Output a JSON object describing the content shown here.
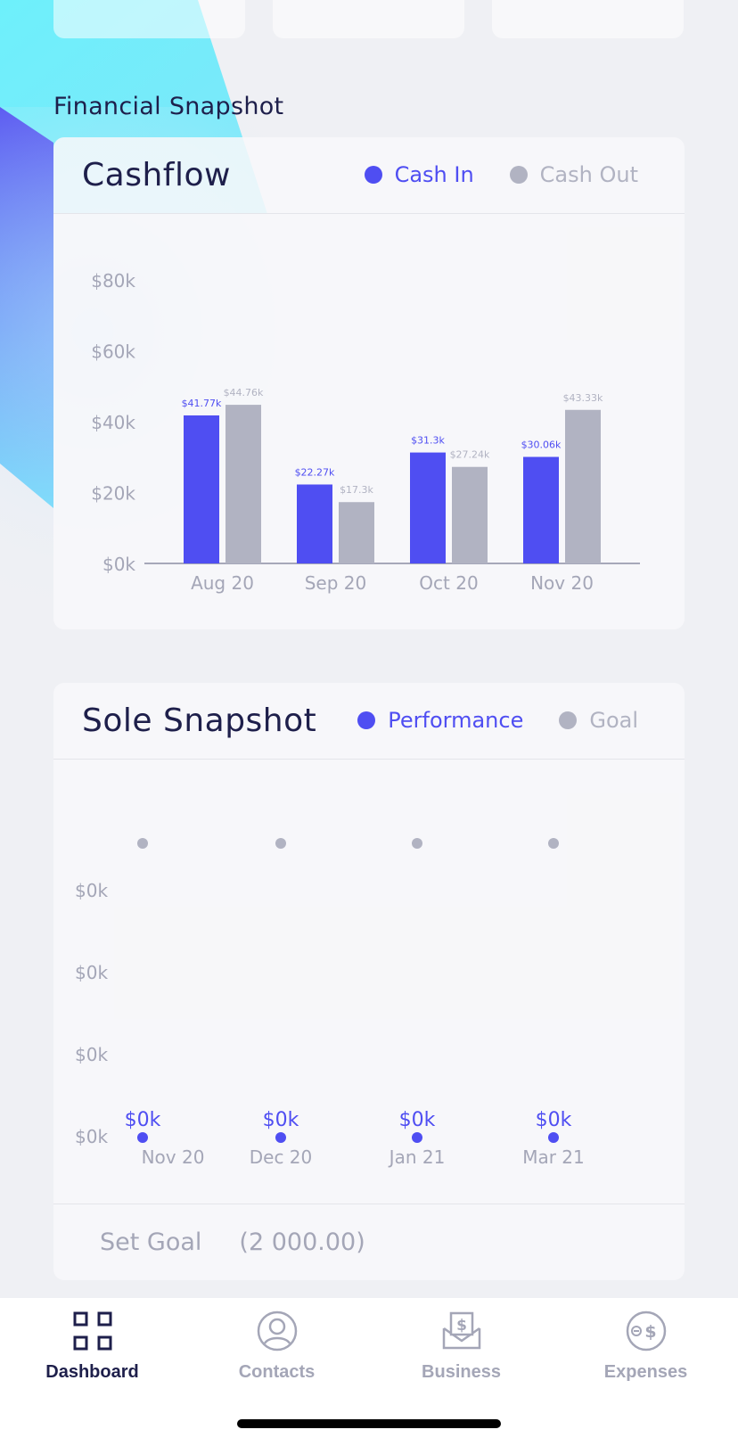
{
  "colors": {
    "primary": "#4f4ef2",
    "secondary": "#b1b3c2",
    "title": "#1e1f4b",
    "muted": "#a4a6b7",
    "background": "#eff0f4"
  },
  "section_title": "Financial Snapshot",
  "cashflow": {
    "title": "Cashflow",
    "legend": [
      {
        "label": "Cash In",
        "color": "#4f4ef2"
      },
      {
        "label": "Cash Out",
        "color": "#b1b3c2"
      }
    ]
  },
  "sole": {
    "title": "Sole Snapshot",
    "legend": [
      {
        "label": "Performance",
        "color": "#4f4ef2"
      },
      {
        "label": "Goal",
        "color": "#b1b3c2"
      }
    ],
    "goal_label": "Set Goal",
    "goal_value": "(2 000.00)"
  },
  "chart_data": [
    {
      "type": "bar",
      "title": "Cashflow",
      "categories": [
        "Aug 20",
        "Sep 20",
        "Oct 20",
        "Nov 20"
      ],
      "series": [
        {
          "name": "Cash In",
          "color": "#4f4ef2",
          "values": [
            41.77,
            22.27,
            31.3,
            30.06
          ],
          "labels": [
            "$41.77k",
            "$22.27k",
            "$31.3k",
            "$30.06k"
          ]
        },
        {
          "name": "Cash Out",
          "color": "#b1b3c2",
          "values": [
            44.76,
            17.3,
            27.24,
            43.33
          ],
          "labels": [
            "$44.76k",
            "$17.3k",
            "$27.24k",
            "$43.33k"
          ]
        }
      ],
      "yticks": [
        {
          "value": 0,
          "label": "$0k"
        },
        {
          "value": 20,
          "label": "$20k"
        },
        {
          "value": 40,
          "label": "$40k"
        },
        {
          "value": 60,
          "label": "$60k"
        },
        {
          "value": 80,
          "label": "$80k"
        }
      ],
      "ylim": [
        0,
        80
      ],
      "legend": "top-right",
      "grid": false
    },
    {
      "type": "scatter",
      "title": "Sole Snapshot",
      "categories": [
        "Nov 20",
        "Dec 20",
        "Jan 21",
        "Mar 21"
      ],
      "series": [
        {
          "name": "Performance",
          "color": "#4f4ef2",
          "values": [
            0,
            0,
            0,
            0
          ],
          "labels": [
            "$0k",
            "$0k",
            "$0k",
            "$0k"
          ]
        },
        {
          "name": "Goal",
          "color": "#b1b3c2",
          "values": [
            2,
            2,
            2,
            2
          ]
        }
      ],
      "yticks": [
        "$0k",
        "$0k",
        "$0k",
        "$0k"
      ],
      "legend": "top-right",
      "grid": false
    }
  ],
  "nav": {
    "items": [
      {
        "label": "Dashboard",
        "icon": "grid-icon",
        "active": true
      },
      {
        "label": "Contacts",
        "icon": "user-circle-icon",
        "active": false
      },
      {
        "label": "Business",
        "icon": "envelope-dollar-icon",
        "active": false
      },
      {
        "label": "Expenses",
        "icon": "coin-minus-icon",
        "active": false
      }
    ]
  }
}
